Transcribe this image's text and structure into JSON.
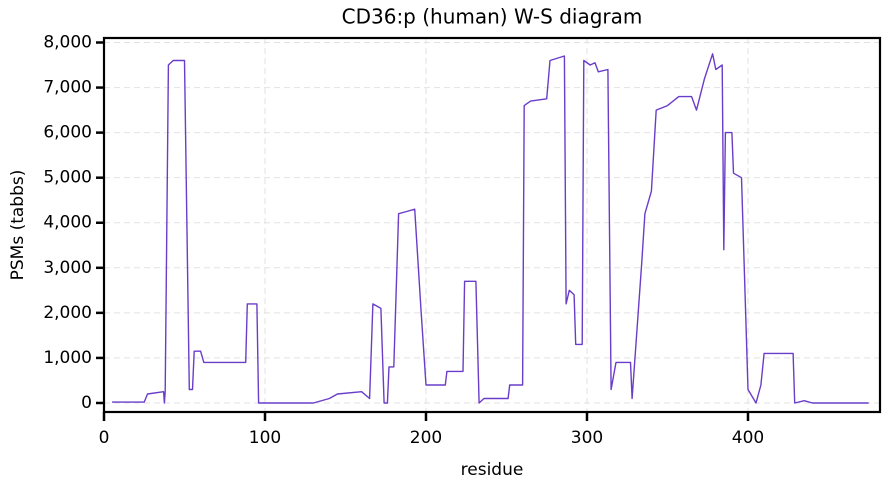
{
  "chart_data": {
    "type": "line",
    "title": "CD36:p (human) W-S diagram",
    "x_label": "residue",
    "y_label": "PSMs (tabbs)",
    "color": "#6a3dc9",
    "grid": true,
    "xlim": [
      0,
      482
    ],
    "ylim": [
      -200,
      8100
    ],
    "xticks": [
      0,
      100,
      200,
      300,
      400
    ],
    "yticks": [
      0,
      {
        "value": 1000,
        "label": "1,000"
      },
      {
        "value": 2000,
        "label": "2,000"
      },
      {
        "value": 3000,
        "label": "3,000"
      },
      {
        "value": 4000,
        "label": "4,000"
      },
      {
        "value": 5000,
        "label": "5,000"
      },
      {
        "value": 6000,
        "label": "6,000"
      },
      {
        "value": 7000,
        "label": "7,000"
      },
      {
        "value": 8000,
        "label": "8,000"
      }
    ],
    "x": [
      5,
      25,
      27,
      37,
      37.5,
      38,
      40,
      43,
      50,
      53,
      55,
      56,
      60,
      62,
      88,
      89,
      95,
      96,
      125,
      130,
      140,
      145,
      160,
      165,
      167,
      172,
      174,
      176,
      177,
      180,
      183,
      188,
      193,
      197,
      200,
      212,
      213,
      223,
      224,
      231,
      233,
      236,
      251,
      252,
      260,
      261,
      265,
      275,
      277,
      286,
      287,
      289,
      292,
      293,
      297,
      298,
      302,
      305,
      307,
      313,
      315,
      318,
      327,
      328,
      334,
      336,
      340,
      343,
      350,
      357,
      365,
      368,
      373,
      378,
      380,
      384,
      385,
      386,
      390,
      391,
      396,
      400,
      405,
      408,
      410,
      428,
      429,
      435,
      440,
      475
    ],
    "values": [
      20,
      20,
      200,
      250,
      0,
      250,
      7500,
      7600,
      7600,
      300,
      300,
      1150,
      1150,
      900,
      900,
      2200,
      2200,
      0,
      0,
      0,
      100,
      200,
      250,
      100,
      2200,
      2100,
      0,
      0,
      800,
      800,
      4200,
      4250,
      4300,
      2000,
      400,
      400,
      700,
      700,
      2700,
      2700,
      0,
      100,
      100,
      400,
      400,
      6600,
      6700,
      6750,
      7600,
      7700,
      2200,
      2500,
      2400,
      1300,
      1300,
      7600,
      7500,
      7550,
      7350,
      7400,
      300,
      900,
      900,
      100,
      3100,
      4200,
      4700,
      6500,
      6600,
      6800,
      6800,
      6500,
      7200,
      7750,
      7400,
      7500,
      3400,
      6000,
      6000,
      5100,
      5000,
      300,
      0,
      400,
      1100,
      1100,
      0,
      50,
      0,
      0
    ]
  }
}
